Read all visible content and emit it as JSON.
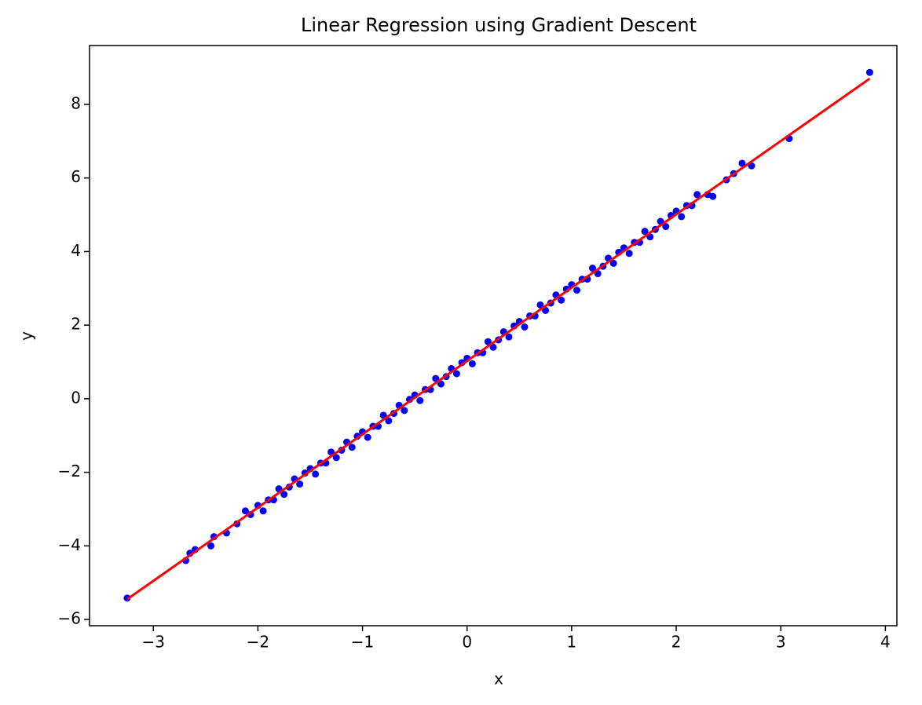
{
  "chart_data": {
    "type": "scatter",
    "title": "Linear Regression using Gradient Descent",
    "x_label": "x",
    "y_label": "y",
    "xlim": [
      -3.61,
      4.11
    ],
    "ylim": [
      -6.17,
      9.6
    ],
    "xticks": [
      {
        "value": -3,
        "label": "−3"
      },
      {
        "value": -2,
        "label": "−2"
      },
      {
        "value": -1,
        "label": "−1"
      },
      0,
      1,
      2,
      3,
      4
    ],
    "yticks": [
      {
        "value": -6,
        "label": "−6"
      },
      {
        "value": -4,
        "label": "−4"
      },
      {
        "value": -2,
        "label": "−2"
      },
      0,
      2,
      4,
      6,
      8
    ],
    "series": [
      {
        "type": "scatter",
        "color": "#0000ff",
        "x": [
          -3.25,
          -2.69,
          -2.65,
          -2.6,
          -2.45,
          -2.42,
          -2.3,
          -2.2,
          -2.12,
          -2.07,
          -2.0,
          -1.95,
          -1.9,
          -1.85,
          -1.8,
          -1.75,
          -1.7,
          -1.65,
          -1.6,
          -1.55,
          -1.5,
          -1.45,
          -1.4,
          -1.35,
          -1.3,
          -1.25,
          -1.2,
          -1.15,
          -1.1,
          -1.05,
          -1.0,
          -0.95,
          -0.9,
          -0.85,
          -0.8,
          -0.75,
          -0.7,
          -0.65,
          -0.6,
          -0.55,
          -0.5,
          -0.45,
          -0.4,
          -0.35,
          -0.3,
          -0.25,
          -0.2,
          -0.15,
          -0.1,
          -0.05,
          0,
          0.05,
          0.1,
          0.15,
          0.2,
          0.25,
          0.3,
          0.35,
          0.4,
          0.45,
          0.5,
          0.55,
          0.6,
          0.65,
          0.7,
          0.75,
          0.8,
          0.85,
          0.9,
          0.95,
          1.0,
          1.05,
          1.1,
          1.15,
          1.2,
          1.25,
          1.3,
          1.35,
          1.4,
          1.45,
          1.5,
          1.55,
          1.6,
          1.65,
          1.7,
          1.75,
          1.8,
          1.85,
          1.9,
          1.95,
          2.0,
          2.05,
          2.1,
          2.15,
          2.2,
          2.3,
          2.35,
          2.48,
          2.55,
          2.63,
          2.72,
          3.08,
          3.85
        ],
        "values": [
          -5.42,
          -4.4,
          -4.2,
          -4.1,
          -4.0,
          -3.75,
          -3.65,
          -3.4,
          -3.05,
          -3.15,
          -2.9,
          -3.05,
          -2.75,
          -2.75,
          -2.45,
          -2.6,
          -2.4,
          -2.18,
          -2.32,
          -2.02,
          -1.9,
          -2.05,
          -1.75,
          -1.75,
          -1.45,
          -1.6,
          -1.4,
          -1.18,
          -1.32,
          -1.02,
          -0.9,
          -1.05,
          -0.75,
          -0.75,
          -0.45,
          -0.6,
          -0.4,
          -0.18,
          -0.32,
          -0.02,
          0.1,
          -0.05,
          0.25,
          0.25,
          0.55,
          0.4,
          0.6,
          0.82,
          0.68,
          0.98,
          1.1,
          0.95,
          1.25,
          1.25,
          1.55,
          1.4,
          1.6,
          1.82,
          1.68,
          1.98,
          2.1,
          1.95,
          2.25,
          2.25,
          2.55,
          2.4,
          2.6,
          2.82,
          2.68,
          2.98,
          3.1,
          2.95,
          3.25,
          3.25,
          3.55,
          3.4,
          3.6,
          3.82,
          3.68,
          3.98,
          4.1,
          3.95,
          4.25,
          4.25,
          4.55,
          4.4,
          4.6,
          4.82,
          4.68,
          4.98,
          5.1,
          4.95,
          5.25,
          5.25,
          5.55,
          5.55,
          5.5,
          5.95,
          6.12,
          6.4,
          6.33,
          7.07,
          8.87
        ]
      },
      {
        "type": "line",
        "color": "#ff0000",
        "x": [
          -3.25,
          3.85
        ],
        "values": [
          -5.45,
          8.7
        ]
      }
    ]
  }
}
